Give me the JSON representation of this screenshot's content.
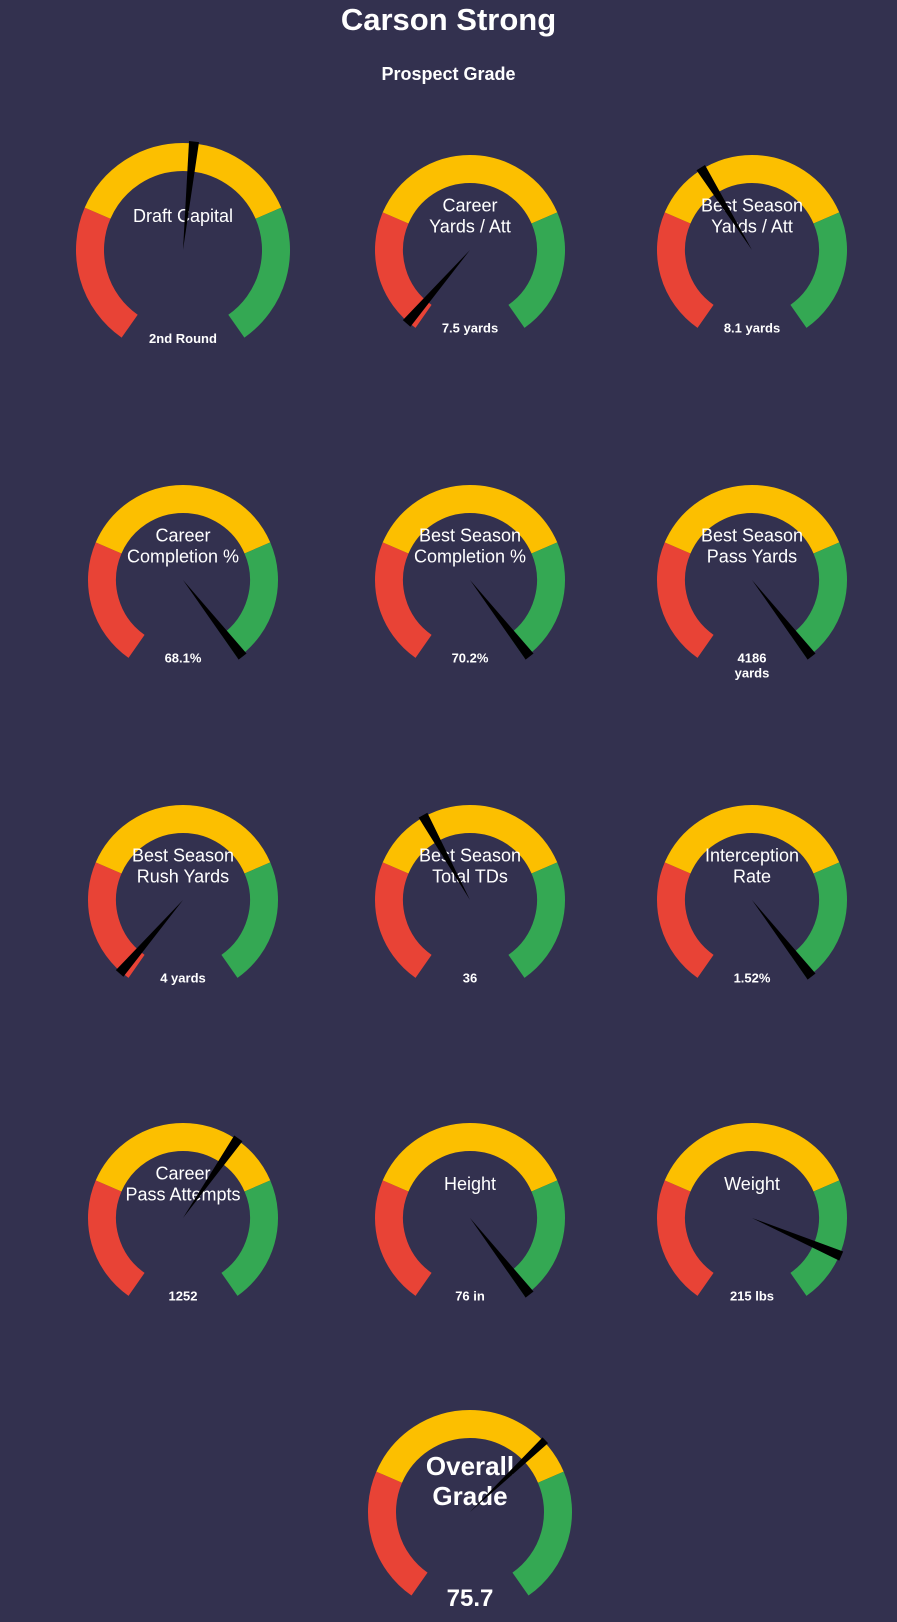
{
  "title": "Carson Strong",
  "subtitle": "Prospect Grade",
  "colors": {
    "background": "#33314f",
    "red": "#e84336",
    "yellow": "#fcbf00",
    "green": "#34a853",
    "needle": "#000000"
  },
  "chart_data": {
    "type": "gauge",
    "scale": [
      0,
      100
    ],
    "bands": [
      {
        "color": "red",
        "from": 0,
        "to": 27
      },
      {
        "color": "yellow",
        "from": 27,
        "to": 73
      },
      {
        "color": "green",
        "from": 73,
        "to": 100
      }
    ],
    "gauges": [
      {
        "label": [
          "Draft Capital"
        ],
        "value_text": [
          "2nd Round"
        ],
        "needle": 52
      },
      {
        "label": [
          "Career",
          "Yards / Att"
        ],
        "value_text": [
          "7.5 yards"
        ],
        "needle": 2
      },
      {
        "label": [
          "Best Season",
          "Yards / Att"
        ],
        "value_text": [
          "8.1 yards"
        ],
        "needle": 39
      },
      {
        "label": [
          "Career",
          "Completion %"
        ],
        "value_text": [
          "68.1%"
        ],
        "needle": 99
      },
      {
        "label": [
          "Best Season",
          "Completion %"
        ],
        "value_text": [
          "70.2%"
        ],
        "needle": 99
      },
      {
        "label": [
          "Best Season",
          "Pass Yards"
        ],
        "value_text": [
          "4186",
          "yards"
        ],
        "needle": 99
      },
      {
        "label": [
          "Best Season",
          "Rush Yards"
        ],
        "value_text": [
          "4 yards"
        ],
        "needle": 2
      },
      {
        "label": [
          "Best Season",
          "Total TDs"
        ],
        "value_text": [
          "36"
        ],
        "needle": 40
      },
      {
        "label": [
          "Interception",
          "Rate"
        ],
        "value_text": [
          "1.52%"
        ],
        "needle": 99
      },
      {
        "label": [
          "Career",
          "Pass Attempts"
        ],
        "value_text": [
          "1252"
        ],
        "needle": 62
      },
      {
        "label": [
          "Height"
        ],
        "value_text": [
          "76 in"
        ],
        "needle": 99
      },
      {
        "label": [
          "Weight"
        ],
        "value_text": [
          "215 lbs"
        ],
        "needle": 89
      }
    ],
    "overall": {
      "label": [
        "Overall",
        "Grade"
      ],
      "value_text": [
        "75.7"
      ],
      "needle": 66
    }
  }
}
